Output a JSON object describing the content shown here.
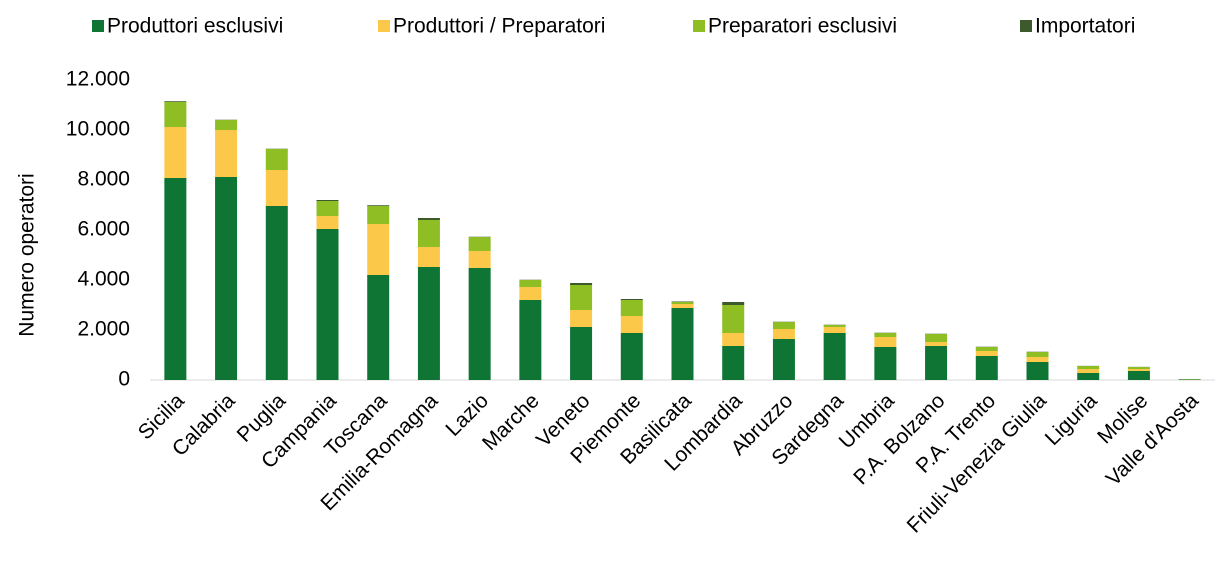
{
  "chart_data": {
    "type": "stacked-bar",
    "y_label": "Numero operatori",
    "categories": [
      "Sicilia",
      "Calabria",
      "Puglia",
      "Campania",
      "Toscana",
      "Emilia-Romagna",
      "Lazio",
      "Marche",
      "Veneto",
      "Piemonte",
      "Basilicata",
      "Lombardia",
      "Abruzzo",
      "Sardegna",
      "Umbria",
      "P.A. Bolzano",
      "P.A. Trento",
      "Friuli-Venezia Giulia",
      "Liguria",
      "Molise",
      "Valle d'Aosta"
    ],
    "series": [
      {
        "name": "Produttori esclusivi",
        "color": "#0f7535",
        "values": [
          8080,
          8120,
          6960,
          6040,
          4200,
          4520,
          4480,
          3200,
          2120,
          1880,
          2880,
          1360,
          1640,
          1880,
          1320,
          1360,
          960,
          720,
          280,
          360,
          20
        ]
      },
      {
        "name": "Produttori / Preparatori",
        "color": "#fcc84a",
        "values": [
          2040,
          1880,
          1440,
          520,
          2040,
          800,
          680,
          520,
          680,
          680,
          160,
          520,
          400,
          240,
          400,
          160,
          200,
          200,
          160,
          80,
          10
        ]
      },
      {
        "name": "Preparatori esclusivi",
        "color": "#8fbd24",
        "values": [
          1000,
          400,
          840,
          600,
          720,
          1080,
          560,
          280,
          1000,
          640,
          80,
          1120,
          280,
          80,
          160,
          320,
          160,
          200,
          120,
          80,
          10
        ]
      },
      {
        "name": "Importatori",
        "color": "#3c5a2c",
        "values": [
          30,
          10,
          10,
          40,
          30,
          80,
          10,
          10,
          80,
          40,
          20,
          120,
          10,
          10,
          10,
          10,
          10,
          10,
          5,
          5,
          0
        ]
      }
    ],
    "ylim": [
      0,
      12000
    ],
    "yticks": [
      0,
      {
        "value": 2000,
        "label": "2.000"
      },
      {
        "value": 4000,
        "label": "4.000"
      },
      {
        "value": 6000,
        "label": "6.000"
      },
      {
        "value": 8000,
        "label": "8.000"
      },
      {
        "value": 10000,
        "label": "10.000"
      },
      {
        "value": 12000,
        "label": "12.000"
      }
    ],
    "legend": "top"
  }
}
